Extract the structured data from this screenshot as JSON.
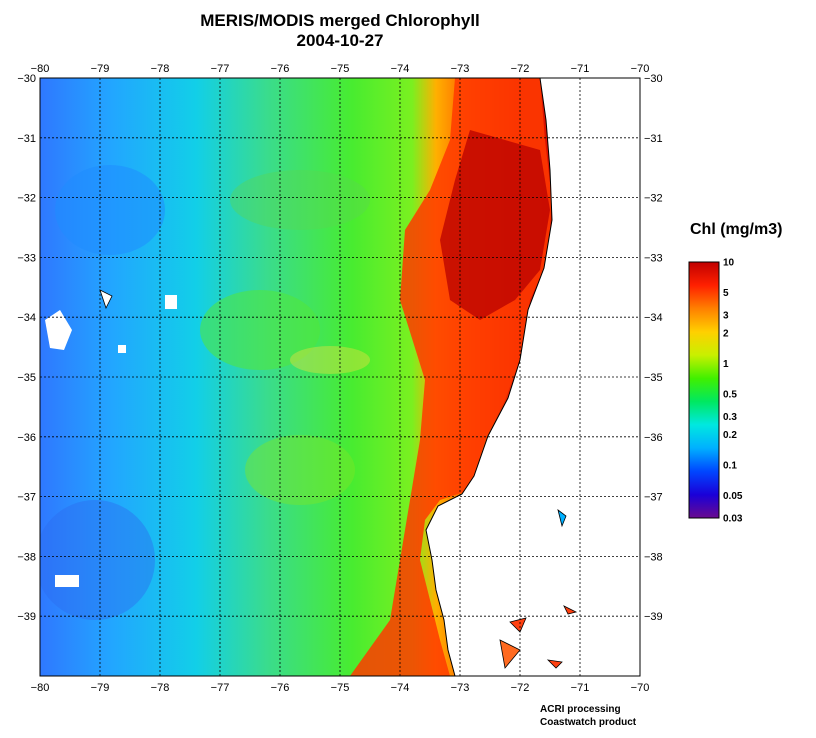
{
  "title_line1": "MERIS/MODIS merged Chlorophyll",
  "title_line2": "2004-10-27",
  "map": {
    "lon_range": [
      -80,
      -70
    ],
    "lat_range": [
      -30,
      -40
    ],
    "lon_ticks": [
      "−80",
      "−79",
      "−78",
      "−77",
      "−76",
      "−75",
      "−74",
      "−73",
      "−72",
      "−71",
      "−70"
    ],
    "lat_ticks": [
      "−30",
      "−31",
      "−32",
      "−33",
      "−34",
      "−35",
      "−36",
      "−37",
      "−38",
      "−39"
    ],
    "grid": "dotted",
    "land_color": "#ffffff",
    "coastline_color": "#000000"
  },
  "colorbar": {
    "title": "Chl (mg/m3)",
    "scale": "log",
    "range": [
      0.03,
      10
    ],
    "ticks": [
      {
        "value": 10,
        "label": "10"
      },
      {
        "value": 5,
        "label": "5"
      },
      {
        "value": 3,
        "label": "3"
      },
      {
        "value": 2,
        "label": "2"
      },
      {
        "value": 1,
        "label": "1"
      },
      {
        "value": 0.5,
        "label": "0.5"
      },
      {
        "value": 0.3,
        "label": "0.3"
      },
      {
        "value": 0.2,
        "label": "0.2"
      },
      {
        "value": 0.1,
        "label": "0.1"
      },
      {
        "value": 0.05,
        "label": "0.05"
      },
      {
        "value": 0.03,
        "label": "0.03"
      }
    ],
    "colors": [
      "#6a0a8f",
      "#1a00d8",
      "#0046ff",
      "#00b0ff",
      "#00e8e0",
      "#00e860",
      "#40f000",
      "#c8f000",
      "#ffd000",
      "#ff8000",
      "#ff2000",
      "#c00000"
    ]
  },
  "credits": {
    "line1": "ACRI processing",
    "line2": "Coastwatch product"
  }
}
